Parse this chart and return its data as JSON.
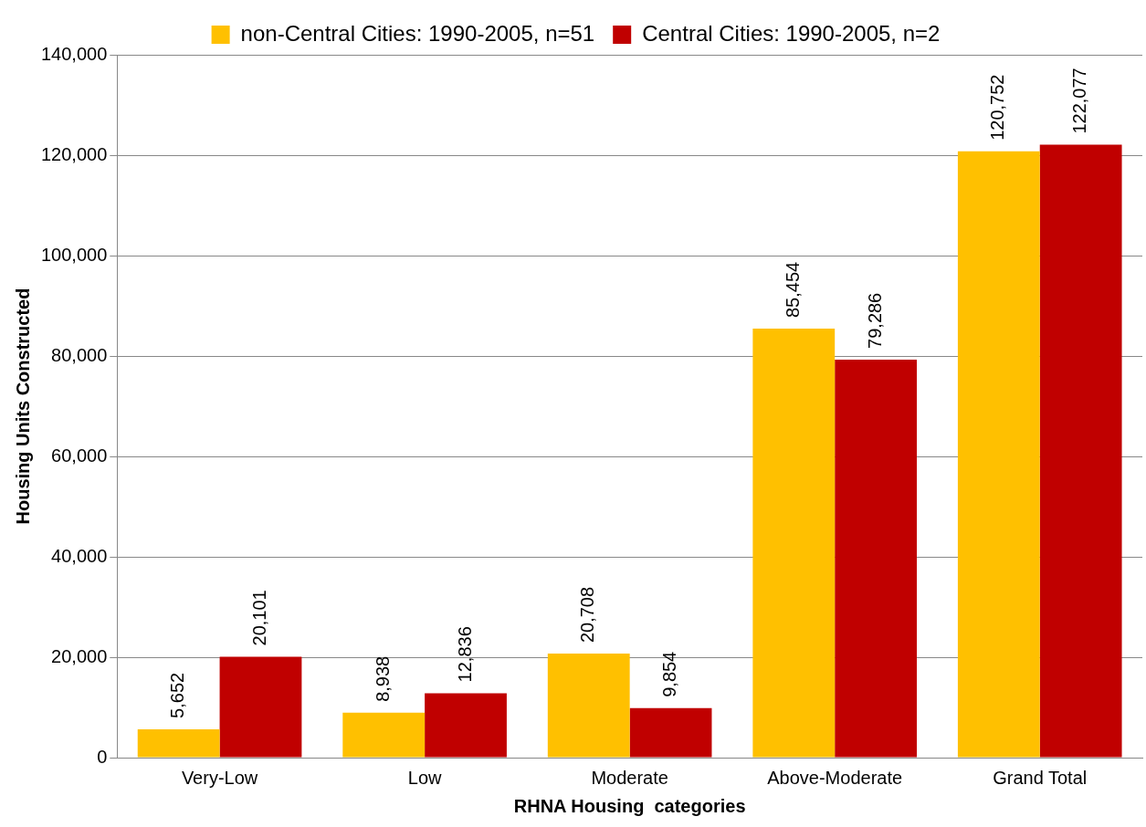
{
  "chart_data": {
    "type": "bar",
    "xlabel": "RHNA Housing  categories",
    "ylabel": "Housing Units Constructed",
    "categories": [
      "Very-Low",
      "Low",
      "Moderate",
      "Above-Moderate",
      "Grand Total"
    ],
    "series": [
      {
        "name": "non-Central Cities: 1990-2005, n=51",
        "color": "#ffc000",
        "values": [
          5652,
          8938,
          20708,
          85454,
          120752
        ],
        "value_labels": [
          "5,652",
          "8,938",
          "20,708",
          "85,454",
          "120,752"
        ]
      },
      {
        "name": "Central Cities: 1990-2005, n=2",
        "color": "#c00000",
        "values": [
          20101,
          12836,
          9854,
          79286,
          122077
        ],
        "value_labels": [
          "20,101",
          "12,836",
          "9,854",
          "79,286",
          "122,077"
        ]
      }
    ],
    "ylim": [
      0,
      140000
    ],
    "yticks": [
      0,
      {
        "value": 20000,
        "label": "20,000"
      },
      {
        "value": 40000,
        "label": "40,000"
      },
      {
        "value": 60000,
        "label": "60,000"
      },
      {
        "value": 80000,
        "label": "80,000"
      },
      {
        "value": 100000,
        "label": "100,000"
      },
      {
        "value": 120000,
        "label": "120,000"
      },
      {
        "value": 140000,
        "label": "140,000"
      }
    ],
    "grid": "y",
    "legend": "top"
  }
}
